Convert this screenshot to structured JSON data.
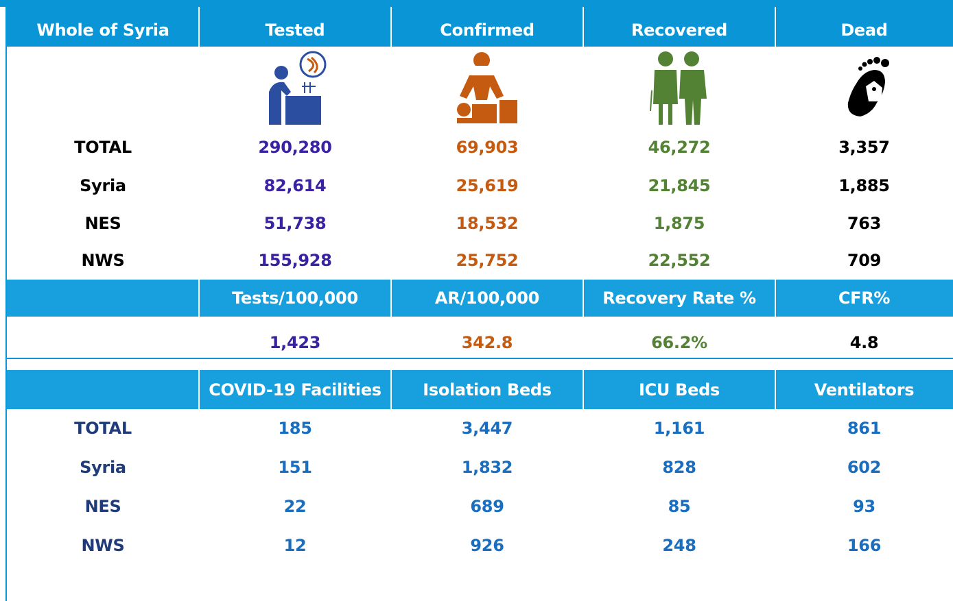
{
  "table1": {
    "header": [
      "Whole of Syria",
      "Tested",
      "Confirmed",
      "Recovered",
      "Dead"
    ],
    "rows": [
      [
        "TOTAL",
        "290,280",
        "69,903",
        "46,272",
        "3,357"
      ],
      [
        "Syria",
        "82,614",
        "25,619",
        "21,845",
        "1,885"
      ],
      [
        "NES",
        "51,738",
        "18,532",
        "1,875",
        "763"
      ],
      [
        "NWS",
        "155,928",
        "25,752",
        "22,552",
        "709"
      ]
    ]
  },
  "rates": {
    "header": [
      "Tests/100,000",
      "AR/100,000",
      "Recovery Rate %",
      "CFR%"
    ],
    "values": [
      "1,423",
      "342.8",
      "66.2%",
      "4.8"
    ]
  },
  "table2": {
    "header": [
      "COVID-19 Facilities",
      "Isolation Beds",
      "ICU Beds",
      "Ventilators"
    ],
    "rows": [
      [
        "TOTAL",
        "185",
        "3,447",
        "1,161",
        "861"
      ],
      [
        "Syria",
        "151",
        "1,832",
        "828",
        "602"
      ],
      [
        "NES",
        "22",
        "689",
        "85",
        "93"
      ],
      [
        "NWS",
        "12",
        "926",
        "248",
        "166"
      ]
    ]
  }
}
